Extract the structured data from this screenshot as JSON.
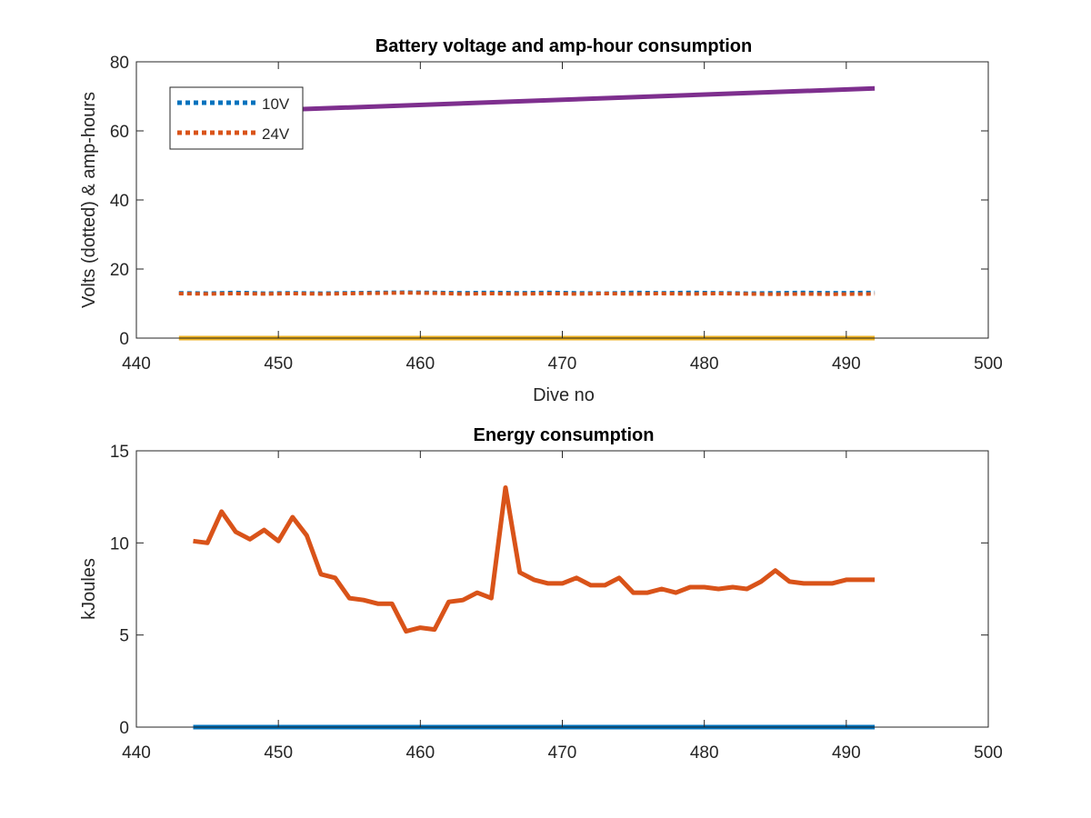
{
  "chart_data": [
    {
      "type": "line",
      "title": "Battery voltage and amp-hour consumption",
      "xlabel": "Dive no",
      "ylabel": "Volts (dotted) & amp-hours",
      "xlim": [
        440,
        500
      ],
      "ylim": [
        0,
        80
      ],
      "xticks": [
        440,
        450,
        460,
        470,
        480,
        490,
        500
      ],
      "yticks": [
        0,
        20,
        40,
        60,
        80
      ],
      "grid": false,
      "legend_position": "top-left",
      "series": [
        {
          "name": "10V",
          "style": "dotted",
          "color": "#0072bd",
          "x": [
            443,
            445,
            447,
            449,
            451,
            453,
            455,
            457,
            459,
            461,
            463,
            465,
            467,
            469,
            471,
            473,
            475,
            477,
            479,
            481,
            483,
            485,
            487,
            489,
            492
          ],
          "values": [
            13.1,
            13.0,
            13.2,
            13.0,
            13.1,
            13.0,
            13.1,
            13.2,
            13.3,
            13.2,
            13.1,
            13.2,
            13.1,
            13.2,
            13.1,
            13.0,
            13.2,
            13.1,
            13.2,
            13.1,
            13.0,
            13.1,
            13.2,
            13.1,
            13.2
          ]
        },
        {
          "name": "24V",
          "style": "dotted",
          "color": "#d95319",
          "x": [
            443,
            445,
            447,
            449,
            451,
            453,
            455,
            457,
            459,
            461,
            463,
            465,
            467,
            469,
            471,
            473,
            475,
            477,
            479,
            481,
            483,
            485,
            487,
            489,
            492
          ],
          "values": [
            12.9,
            12.8,
            12.9,
            12.8,
            12.9,
            12.8,
            12.9,
            13.0,
            13.1,
            13.0,
            12.8,
            12.9,
            12.8,
            12.9,
            12.8,
            12.9,
            12.8,
            12.9,
            12.8,
            12.9,
            12.8,
            12.7,
            12.8,
            12.7,
            12.8
          ]
        },
        {
          "style": "solid",
          "color": "#7e2f8e",
          "x": [
            443,
            492
          ],
          "values": [
            65.0,
            72.3
          ]
        },
        {
          "style": "solid",
          "color": "#edb120",
          "x": [
            443,
            492
          ],
          "values": [
            0,
            0
          ]
        }
      ]
    },
    {
      "type": "line",
      "title": "Energy consumption",
      "xlabel": "",
      "ylabel": "kJoules",
      "xlim": [
        440,
        500
      ],
      "ylim": [
        0,
        15
      ],
      "xticks": [
        440,
        450,
        460,
        470,
        480,
        490,
        500
      ],
      "yticks": [
        0,
        5,
        10,
        15
      ],
      "grid": false,
      "series": [
        {
          "style": "solid",
          "color": "#0072bd",
          "x": [
            444,
            492
          ],
          "values": [
            0,
            0
          ]
        },
        {
          "style": "solid",
          "color": "#d95319",
          "x": [
            444,
            445,
            446,
            447,
            448,
            449,
            450,
            451,
            452,
            453,
            454,
            455,
            456,
            457,
            458,
            459,
            460,
            461,
            462,
            463,
            464,
            465,
            466,
            467,
            468,
            469,
            470,
            471,
            472,
            473,
            474,
            475,
            476,
            477,
            478,
            479,
            480,
            481,
            482,
            483,
            484,
            485,
            486,
            487,
            488,
            489,
            490,
            491,
            492
          ],
          "values": [
            10.1,
            10.0,
            11.7,
            10.6,
            10.2,
            10.7,
            10.1,
            11.4,
            10.4,
            8.3,
            8.1,
            7.0,
            6.9,
            6.7,
            6.7,
            5.2,
            5.4,
            5.3,
            6.8,
            6.9,
            7.3,
            7.0,
            13.0,
            8.4,
            8.0,
            7.8,
            7.8,
            8.1,
            7.7,
            7.7,
            8.1,
            7.3,
            7.3,
            7.5,
            7.3,
            7.6,
            7.6,
            7.5,
            7.6,
            7.5,
            7.9,
            8.5,
            7.9,
            7.8,
            7.8,
            7.8,
            8.0,
            8.0,
            8.0
          ]
        }
      ]
    }
  ]
}
